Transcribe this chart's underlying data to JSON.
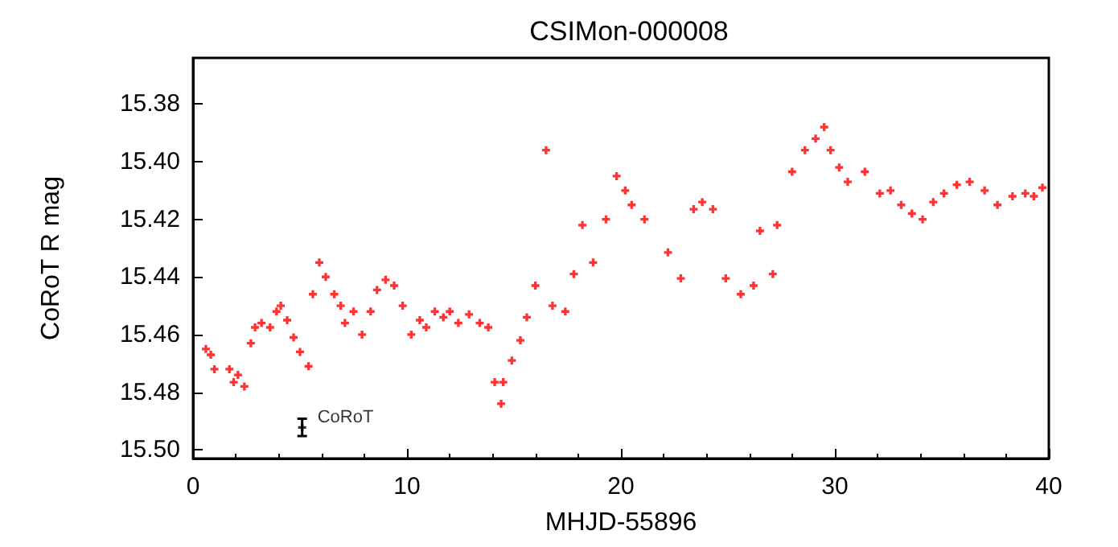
{
  "chart_data": {
    "type": "scatter",
    "title": "CSIMon-000008",
    "xlabel": "MHJD-55896",
    "ylabel": "CoRoT R mag",
    "marker": "cross",
    "xlim": [
      0,
      40
    ],
    "xticks": [
      0,
      10,
      20,
      30,
      40
    ],
    "ylim": [
      15.503,
      15.364
    ],
    "yticks": [
      {
        "value": 15.38,
        "label": "15.38"
      },
      {
        "value": 15.4,
        "label": "15.40"
      },
      {
        "value": 15.42,
        "label": "15.42"
      },
      {
        "value": 15.44,
        "label": "15.44"
      },
      {
        "value": 15.46,
        "label": "15.46"
      },
      {
        "value": 15.48,
        "label": "15.48"
      },
      {
        "value": 15.5,
        "label": "15.50"
      }
    ],
    "series": [
      {
        "color": "#ff0000",
        "x": [
          0.6,
          0.83,
          1.0,
          1.7,
          1.9,
          2.1,
          2.4,
          2.7,
          2.9,
          3.2,
          3.6,
          3.9,
          4.1,
          4.4,
          4.7,
          5.0,
          5.4,
          5.6,
          5.9,
          6.2,
          6.6,
          6.9,
          7.1,
          7.5,
          7.9,
          8.3,
          8.6,
          9.0,
          9.4,
          9.8,
          10.2,
          10.6,
          10.9,
          11.3,
          11.7,
          12.0,
          12.4,
          12.9,
          13.4,
          13.8,
          14.1,
          14.4,
          14.5,
          14.9,
          15.3,
          15.6,
          16.0,
          16.5,
          16.8,
          17.4,
          17.8,
          18.2,
          18.7,
          19.3,
          19.8,
          20.2,
          20.5,
          21.1,
          22.2,
          22.8,
          23.4,
          23.8,
          24.3,
          24.9,
          25.6,
          26.2,
          26.5,
          27.1,
          27.3,
          28.0,
          28.6,
          29.1,
          29.5,
          29.8,
          30.2,
          30.6,
          31.4,
          32.1,
          32.6,
          33.1,
          33.6,
          34.1,
          34.6,
          35.1,
          35.7,
          36.3,
          37.0,
          37.6,
          38.3,
          38.9,
          39.3,
          39.7
        ],
        "values": [
          15.465,
          15.467,
          15.472,
          15.472,
          15.4765,
          15.474,
          15.478,
          15.463,
          15.4575,
          15.456,
          15.4575,
          15.452,
          15.45,
          15.455,
          15.461,
          15.466,
          15.471,
          15.446,
          15.435,
          15.44,
          15.446,
          15.45,
          15.456,
          15.452,
          15.46,
          15.452,
          15.4445,
          15.441,
          15.443,
          15.45,
          15.46,
          15.455,
          15.4575,
          15.452,
          15.454,
          15.452,
          15.456,
          15.453,
          15.456,
          15.4575,
          15.4765,
          15.484,
          15.4765,
          15.469,
          15.462,
          15.454,
          15.443,
          15.396,
          15.45,
          15.452,
          15.439,
          15.422,
          15.435,
          15.42,
          15.405,
          15.41,
          15.415,
          15.42,
          15.4315,
          15.4405,
          15.4165,
          15.414,
          15.4165,
          15.4405,
          15.446,
          15.443,
          15.424,
          15.439,
          15.422,
          15.4035,
          15.396,
          15.392,
          15.388,
          15.396,
          15.402,
          15.407,
          15.4035,
          15.411,
          15.41,
          15.415,
          15.418,
          15.42,
          15.414,
          15.411,
          15.408,
          15.407,
          15.41,
          15.415,
          15.412,
          15.411,
          15.412,
          15.409
        ]
      },
      {
        "name": "CoRoT",
        "color": "#000000",
        "x": [
          5.1
        ],
        "values": [
          15.4922
        ],
        "errors": [
          0.003
        ]
      }
    ]
  }
}
